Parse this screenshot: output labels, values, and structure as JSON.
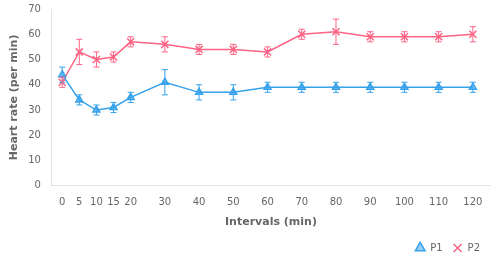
{
  "chart_data": {
    "type": "line",
    "xlabel": "Intervals (min)",
    "ylabel": "Heart rate (per min)",
    "x": [
      0,
      5,
      10,
      15,
      20,
      30,
      40,
      50,
      60,
      70,
      80,
      90,
      100,
      110,
      120
    ],
    "series": [
      {
        "name": "P1",
        "marker": "triangle",
        "values": [
          44,
          34,
          30,
          31,
          35,
          41,
          37,
          37,
          39,
          39,
          39,
          39,
          39,
          39,
          39
        ],
        "errors": [
          3,
          2,
          2,
          2,
          2,
          5,
          3,
          3,
          2,
          2,
          2,
          2,
          2,
          2,
          2
        ]
      },
      {
        "name": "P2",
        "marker": "x",
        "values": [
          41,
          53,
          50,
          51,
          57,
          56,
          54,
          54,
          53,
          60,
          61,
          59,
          59,
          59,
          60
        ],
        "errors": [
          2,
          5,
          3,
          2,
          2,
          3,
          2,
          2,
          2,
          2,
          5,
          2,
          2,
          2,
          3
        ]
      }
    ],
    "xlim": [
      -3,
      125
    ],
    "xticks": [
      0,
      5,
      10,
      15,
      20,
      30,
      40,
      50,
      60,
      70,
      80,
      90,
      100,
      110,
      120
    ],
    "ylim": [
      0,
      70
    ],
    "yticks": [
      0,
      10,
      20,
      30,
      40,
      50,
      60,
      70
    ],
    "grid": false,
    "legend": "lower right"
  }
}
